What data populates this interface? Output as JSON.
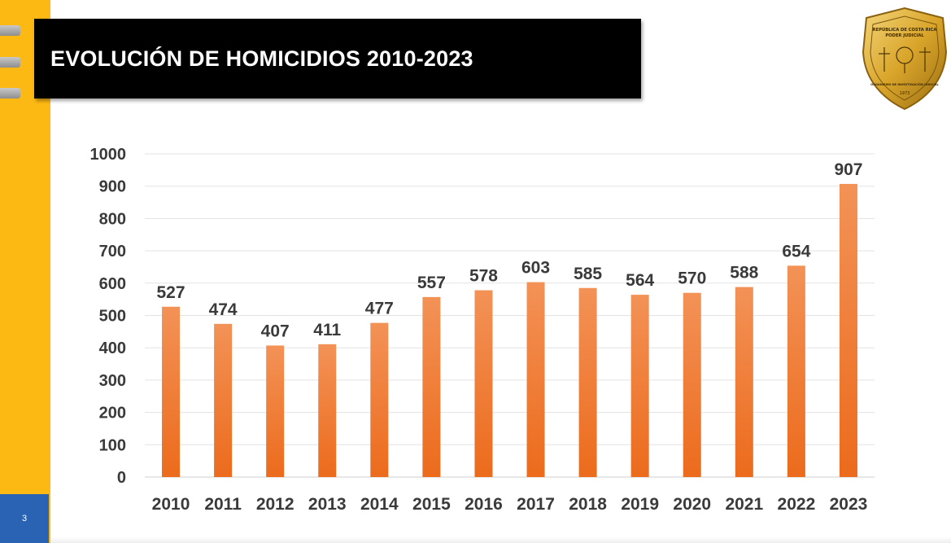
{
  "header": {
    "title": "EVOLUCIÓN DE HOMICIDIOS 2010-2023"
  },
  "badge": {
    "line1": "REPÚBLICA DE COSTA RICA",
    "line2": "PODER JUDICIAL",
    "line3": "ORGANISMO DE INVESTIGACIÓN JUDICIAL",
    "year": "1973",
    "colors": {
      "gold": "#d9a52a",
      "gold_light": "#f4d57a",
      "gold_dark": "#9a6e12"
    }
  },
  "footer": {
    "page_number": "3"
  },
  "colors": {
    "accent_band": "#fdb913",
    "title_bar": "#000000",
    "bar_top": "#f39257",
    "bar_bottom": "#ec6b1c",
    "page_box": "#2a63b4",
    "label_text": "#3a3a3a",
    "grid": "#e3e3e3"
  },
  "chart_data": {
    "type": "bar",
    "categories": [
      "2010",
      "2011",
      "2012",
      "2013",
      "2014",
      "2015",
      "2016",
      "2017",
      "2018",
      "2019",
      "2020",
      "2021",
      "2022",
      "2023"
    ],
    "values": [
      527,
      474,
      407,
      411,
      477,
      557,
      578,
      603,
      585,
      564,
      570,
      588,
      654,
      907
    ],
    "title": "",
    "xlabel": "",
    "ylabel": "",
    "ylim": [
      0,
      1000
    ],
    "yticks": [
      0,
      100,
      200,
      300,
      400,
      500,
      600,
      700,
      800,
      900,
      1000
    ],
    "grid": true,
    "data_labels": true
  }
}
